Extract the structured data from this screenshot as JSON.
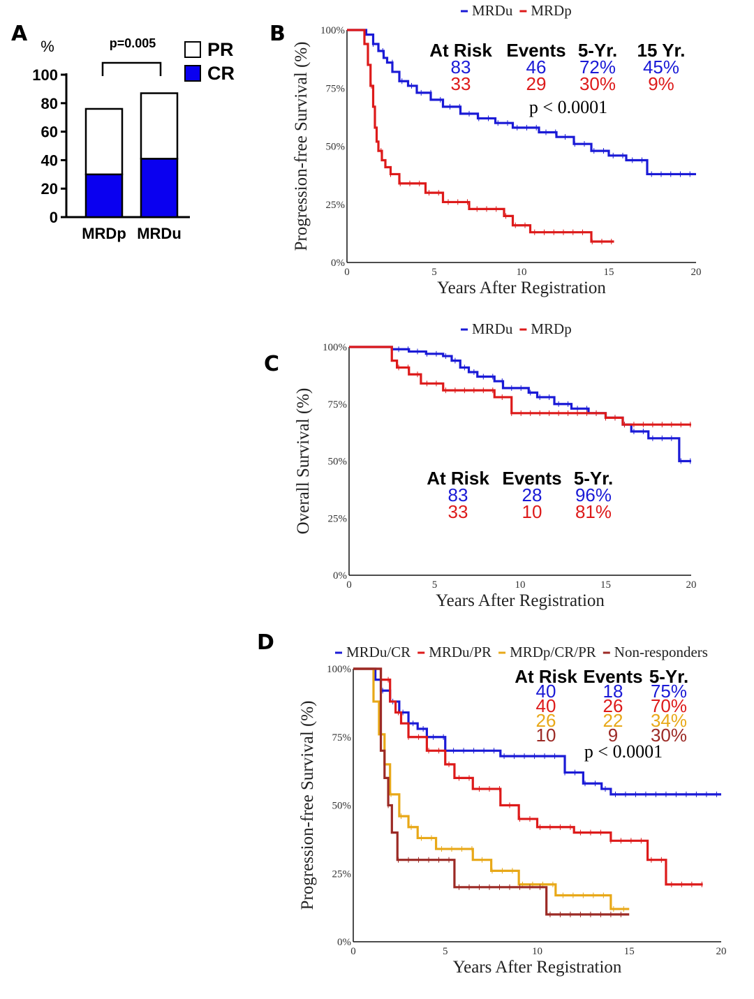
{
  "chart_data": [
    {
      "panel": "A",
      "type": "bar",
      "stacked": true,
      "ylabel": "%",
      "ylim": [
        0,
        100
      ],
      "yticks": [
        "0",
        "20",
        "40",
        "60",
        "80",
        "100"
      ],
      "categories": [
        "MRDp",
        "MRDu"
      ],
      "series": [
        {
          "name": "CR",
          "color": "#0a00f0",
          "values": [
            30,
            41
          ]
        },
        {
          "name": "PR",
          "color": "#ffffff",
          "values": [
            46,
            46
          ]
        }
      ],
      "annotation": "p=0.005"
    },
    {
      "panel": "B",
      "type": "line",
      "step": true,
      "ylabel": "Progression-free Survival (%)",
      "xlabel": "Years After Registration",
      "xlim": [
        0,
        20
      ],
      "ylim": [
        0,
        100
      ],
      "xticks": [
        "0",
        "5",
        "10",
        "15",
        "20"
      ],
      "yticks": [
        "0%",
        "25%",
        "50%",
        "75%",
        "100%"
      ],
      "series": [
        {
          "name": "MRDu",
          "color": "#1a1ad6",
          "x": [
            0,
            1.1,
            1.5,
            1.8,
            2.1,
            2.3,
            2.6,
            3.0,
            3.5,
            4.0,
            4.8,
            5.5,
            6.5,
            7.5,
            8.5,
            9.5,
            11,
            12,
            13,
            14,
            15,
            16,
            17.2,
            20
          ],
          "y": [
            100,
            98,
            94,
            91,
            88,
            86,
            82,
            78,
            76,
            73,
            70,
            67,
            64,
            62,
            60,
            58,
            56,
            54,
            51,
            48,
            46,
            44,
            38,
            38
          ]
        },
        {
          "name": "MRDp",
          "color": "#dd1a1a",
          "x": [
            0,
            1.0,
            1.2,
            1.35,
            1.5,
            1.6,
            1.7,
            1.8,
            2.0,
            2.2,
            2.5,
            3.0,
            4.5,
            5.5,
            7.0,
            9.0,
            9.5,
            10.5,
            12,
            14,
            15.3
          ],
          "y": [
            100,
            94,
            85,
            76,
            67,
            58,
            52,
            48,
            44,
            41,
            38,
            34,
            30,
            26,
            23,
            20,
            16,
            13,
            13,
            9,
            9
          ]
        }
      ],
      "legend": [
        "MRDu",
        "MRDp"
      ],
      "table": {
        "headers": [
          "At Risk",
          "Events",
          "5-Yr.",
          "15 Yr."
        ],
        "rows": [
          {
            "color": "#1a1ad6",
            "cells": [
              "83",
              "46",
              "72%",
              "45%"
            ]
          },
          {
            "color": "#dd1a1a",
            "cells": [
              "33",
              "29",
              "30%",
              "9%"
            ]
          }
        ]
      },
      "annotation": "p < 0.0001"
    },
    {
      "panel": "C",
      "type": "line",
      "step": true,
      "ylabel": "Overall Survival (%)",
      "xlabel": "Years After Registration",
      "xlim": [
        0,
        20
      ],
      "ylim": [
        0,
        100
      ],
      "xticks": [
        "0",
        "5",
        "10",
        "15",
        "20"
      ],
      "yticks": [
        "0%",
        "25%",
        "50%",
        "75%",
        "100%"
      ],
      "series": [
        {
          "name": "MRDu",
          "color": "#1a1ad6",
          "x": [
            0,
            2.5,
            3.5,
            4.5,
            5.5,
            6.0,
            6.5,
            7.0,
            7.5,
            8.5,
            9.0,
            10.5,
            11,
            12,
            13,
            14,
            15,
            16,
            16.5,
            17.5,
            19.3,
            20
          ],
          "y": [
            100,
            99,
            98,
            97,
            96,
            94,
            91,
            89,
            87,
            85,
            82,
            80,
            78,
            75,
            73,
            71,
            69,
            66,
            63,
            60,
            50,
            50
          ]
        },
        {
          "name": "MRDp",
          "color": "#dd1a1a",
          "x": [
            0,
            2.5,
            2.8,
            3.5,
            4.2,
            5.5,
            8.5,
            9.5,
            15.0,
            16,
            20
          ],
          "y": [
            100,
            94,
            91,
            88,
            84,
            81,
            78,
            71,
            69,
            66,
            66
          ]
        }
      ],
      "legend": [
        "MRDu",
        "MRDp"
      ],
      "table": {
        "headers": [
          "At Risk",
          "Events",
          "5-Yr."
        ],
        "rows": [
          {
            "color": "#1a1ad6",
            "cells": [
              "83",
              "28",
              "96%"
            ]
          },
          {
            "color": "#dd1a1a",
            "cells": [
              "33",
              "10",
              "81%"
            ]
          }
        ]
      }
    },
    {
      "panel": "D",
      "type": "line",
      "step": true,
      "ylabel": "Progression-free Survival (%)",
      "xlabel": "Years After Registration",
      "xlim": [
        0,
        20
      ],
      "ylim": [
        0,
        100
      ],
      "xticks": [
        "0",
        "5",
        "10",
        "15",
        "20"
      ],
      "yticks": [
        "0%",
        "25%",
        "50%",
        "75%",
        "100%"
      ],
      "series": [
        {
          "name": "MRDu/CR",
          "color": "#1a1ad6",
          "x": [
            0,
            1.2,
            1.5,
            2.0,
            2.5,
            3.0,
            3.5,
            4.0,
            5.0,
            8.0,
            11.5,
            12.5,
            13.5,
            14.0,
            20
          ],
          "y": [
            100,
            96,
            92,
            88,
            84,
            80,
            78,
            75,
            70,
            68,
            62,
            58,
            56,
            54,
            54
          ]
        },
        {
          "name": "MRDu/PR",
          "color": "#dd1a1a",
          "x": [
            0,
            1.5,
            2.0,
            2.3,
            2.6,
            3.0,
            4.0,
            5.0,
            5.5,
            6.5,
            8.0,
            9.0,
            10.0,
            12.0,
            14.0,
            16.0,
            17.0,
            19.0
          ],
          "y": [
            100,
            96,
            88,
            84,
            80,
            75,
            70,
            65,
            60,
            56,
            50,
            45,
            42,
            40,
            37,
            30,
            21,
            21
          ]
        },
        {
          "name": "MRDp/CR/PR",
          "color": "#e8a818",
          "x": [
            0,
            1.1,
            1.4,
            1.7,
            2.0,
            2.5,
            3.0,
            3.5,
            4.5,
            6.5,
            7.5,
            9.0,
            11.0,
            14.0,
            15.0
          ],
          "y": [
            100,
            88,
            76,
            65,
            54,
            46,
            42,
            38,
            34,
            30,
            26,
            21,
            17,
            12,
            12
          ]
        },
        {
          "name": "Non-responders",
          "color": "#9c2a25",
          "x": [
            0,
            1.5,
            1.7,
            1.9,
            2.1,
            2.4,
            5.5,
            10.5,
            15.0
          ],
          "y": [
            100,
            70,
            60,
            50,
            40,
            30,
            20,
            10,
            10
          ]
        }
      ],
      "legend": [
        "MRDu/CR",
        "MRDu/PR",
        "MRDp/CR/PR",
        "Non-responders"
      ],
      "table": {
        "headers": [
          "At Risk",
          "Events",
          "5-Yr."
        ],
        "rows": [
          {
            "color": "#1a1ad6",
            "cells": [
              "40",
              "18",
              "75%"
            ]
          },
          {
            "color": "#dd1a1a",
            "cells": [
              "40",
              "26",
              "70%"
            ]
          },
          {
            "color": "#e8a818",
            "cells": [
              "26",
              "22",
              "34%"
            ]
          },
          {
            "color": "#9c2a25",
            "cells": [
              "10",
              "9",
              "30%"
            ]
          }
        ]
      },
      "annotation": "p < 0.0001"
    }
  ]
}
